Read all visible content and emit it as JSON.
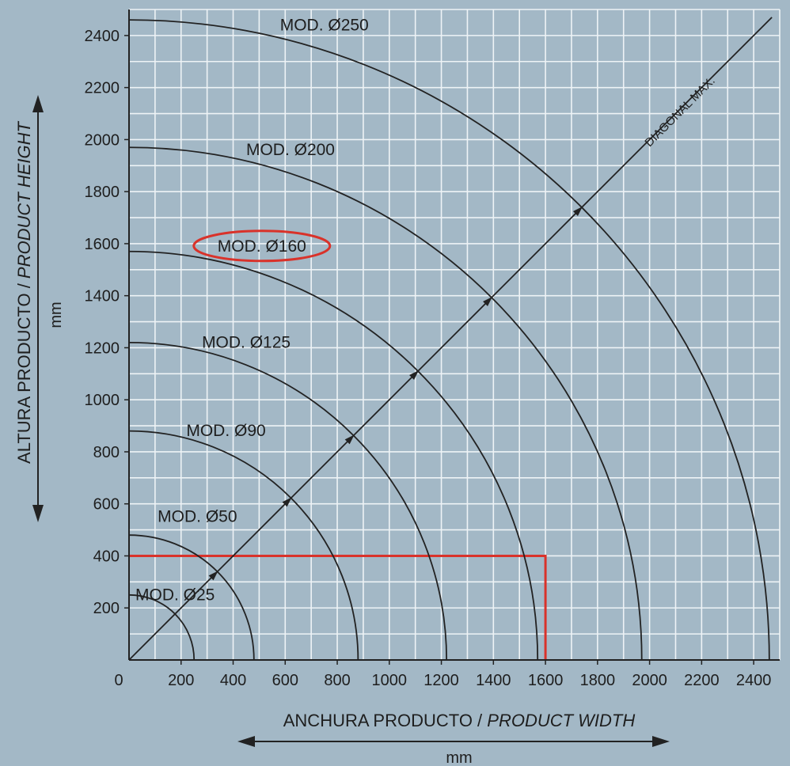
{
  "chart_data": {
    "type": "line",
    "xlabel_main": "ANCHURA PRODUCTO / ",
    "xlabel_italic": "PRODUCT WIDTH",
    "xunit": "mm",
    "ylabel_main": "ALTURA PRODUCTO / ",
    "ylabel_italic": "PRODUCT HEIGHT",
    "yunit": "mm",
    "xlim": [
      0,
      2500
    ],
    "ylim": [
      0,
      2500
    ],
    "x_ticks": [
      "0",
      "200",
      "400",
      "600",
      "800",
      "1000",
      "1200",
      "1400",
      "1600",
      "1800",
      "2000",
      "2200",
      "2400"
    ],
    "y_ticks": [
      "200",
      "400",
      "600",
      "800",
      "1000",
      "1200",
      "1400",
      "1600",
      "1800",
      "2000",
      "2200",
      "2400"
    ],
    "grid": true,
    "models": [
      {
        "label": "MOD. Ø25",
        "radius": 250,
        "label_x": 0,
        "label_y": 230
      },
      {
        "label": "MOD. Ø50",
        "radius": 480,
        "label_x": 110,
        "label_y": 530
      },
      {
        "label": "MOD. Ø90",
        "radius": 880,
        "label_x": 220,
        "label_y": 860
      },
      {
        "label": "MOD. Ø125",
        "radius": 1220,
        "label_x": 280,
        "label_y": 1200
      },
      {
        "label": "MOD. Ø160",
        "radius": 1570,
        "label_x": 340,
        "label_y": 1570,
        "highlighted": true
      },
      {
        "label": "MOD. Ø200",
        "radius": 1970,
        "label_x": 450,
        "label_y": 1940
      },
      {
        "label": "MOD. Ø250",
        "radius": 2460,
        "label_x": 580,
        "label_y": 2420
      }
    ],
    "diagonal": {
      "label": "DIAGONAL MAX.",
      "to": [
        2470,
        2470
      ]
    },
    "highlight_region": {
      "width": 1600,
      "height": 400,
      "color": "#d9322a"
    },
    "colors": {
      "background": "#a3b8c6",
      "grid": "#eef3f6",
      "ink": "#222222",
      "highlight": "#d9322a"
    }
  }
}
